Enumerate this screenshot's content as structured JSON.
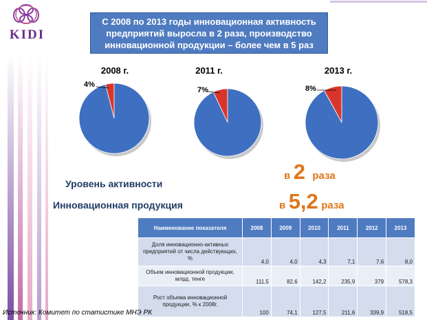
{
  "logo": {
    "text": "KIDI"
  },
  "banner": {
    "text": "С 2008 по 2013 годы инновационная активность предприятий выросла в 2 раза, производство инновационной продукции – более чем в 5 раз"
  },
  "chart_data": [
    {
      "type": "pie",
      "title": "2008 г.",
      "values": [
        4,
        96
      ],
      "labels": [
        "4%",
        ""
      ],
      "colors": [
        "#d9352c",
        "#3f6fc1"
      ]
    },
    {
      "type": "pie",
      "title": "2011 г.",
      "values": [
        7,
        93
      ],
      "labels": [
        "7%",
        ""
      ],
      "colors": [
        "#d9352c",
        "#3f6fc1"
      ]
    },
    {
      "type": "pie",
      "title": "2013 г.",
      "values": [
        8,
        92
      ],
      "labels": [
        "8%",
        ""
      ],
      "colors": [
        "#d9352c",
        "#3f6fc1"
      ]
    }
  ],
  "labels": {
    "activity": "Уровень активности",
    "product": "Инновационная продукция"
  },
  "growth": {
    "activity": {
      "prefix": "в",
      "value": "2",
      "suffix": "раза"
    },
    "product": {
      "prefix": "в",
      "value": "5,2",
      "suffix": "раза"
    }
  },
  "table": {
    "header_name": "Наименование показателя",
    "years": [
      "2008",
      "2009",
      "2010",
      "2011",
      "2012",
      "2013"
    ],
    "rows": [
      {
        "name": "Доля инновационно-активных предприятий от числа действующих, %",
        "values": [
          "4,0",
          "4,0",
          "4,3",
          "7,1",
          "7,6",
          "8,0"
        ]
      },
      {
        "name": "Объем инновационной продукции, млрд. тенге",
        "values": [
          "111,5",
          "82,6",
          "142,2",
          "235,9",
          "379",
          "578,3"
        ]
      },
      {
        "name": "Рост объема инновационной продукции, % к 2008г.",
        "values": [
          "100",
          "74,1",
          "127,5",
          "211,6",
          "339,9",
          "518,5"
        ]
      }
    ]
  },
  "source": "Источник: Комитет по статистике МНЭ РК"
}
